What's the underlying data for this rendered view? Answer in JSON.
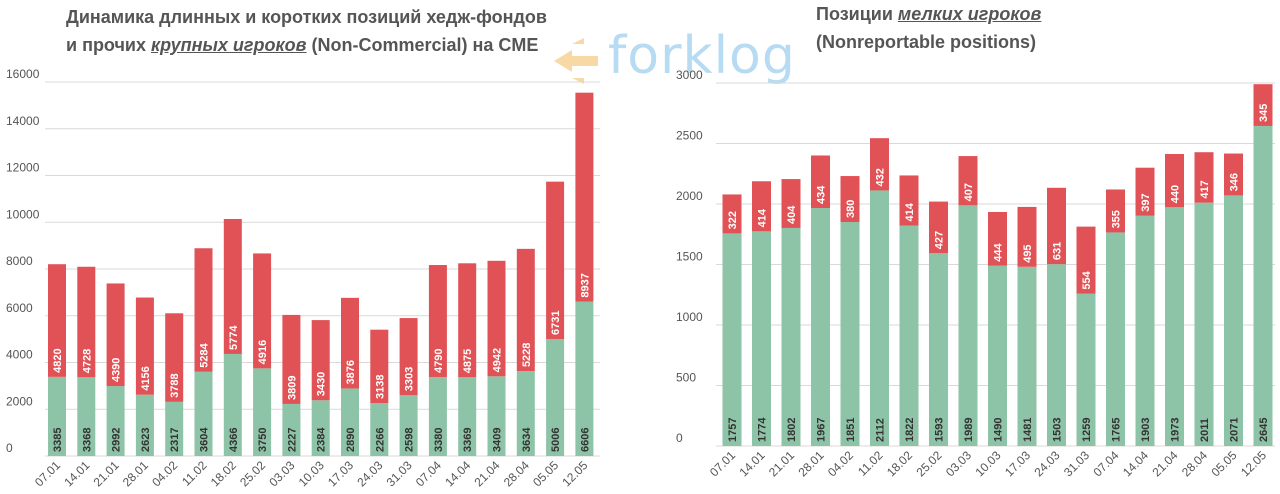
{
  "left_title": {
    "line1": "Динамика длинных и коротких позиций хедж-фондов",
    "line2_pre": "и прочих ",
    "line2_em": "крупных игроков",
    "line2_post": " (Non-Commercial) на CME"
  },
  "right_title": {
    "line1_pre": "Позиции ",
    "line1_em": "мелких игроков",
    "line2": "(Nonreportable positions)"
  },
  "logo": {
    "text": "forklog"
  },
  "colors": {
    "long": "#8dc3a6",
    "short": "#e05256",
    "grid": "#d9d9d9"
  },
  "chart_data": [
    {
      "type": "bar",
      "stacked": true,
      "categories": [
        "07.01",
        "14.01",
        "21.01",
        "28.01",
        "04.02",
        "11.02",
        "18.02",
        "25.02",
        "03.03",
        "10.03",
        "17.03",
        "24.03",
        "31.03",
        "07.04",
        "14.04",
        "21.04",
        "28.04",
        "05.05",
        "12.05"
      ],
      "series": [
        {
          "color": "#8dc3a6",
          "values": [
            3385,
            3368,
            2992,
            2623,
            2317,
            3604,
            4366,
            3750,
            2227,
            2384,
            2890,
            2266,
            2598,
            3380,
            3369,
            3409,
            3634,
            5006,
            6606
          ]
        },
        {
          "color": "#e05256",
          "values": [
            4820,
            4728,
            4390,
            4156,
            3788,
            5284,
            5774,
            4916,
            3809,
            3430,
            3876,
            3138,
            3303,
            4790,
            4875,
            4942,
            5228,
            6731,
            8937
          ]
        }
      ],
      "yticks": [
        0,
        2000,
        4000,
        6000,
        8000,
        10000,
        12000,
        14000,
        16000
      ],
      "ylim": [
        0,
        16000
      ],
      "grid": true
    },
    {
      "type": "bar",
      "stacked": true,
      "categories": [
        "07.01",
        "14.01",
        "21.01",
        "28.01",
        "04.02",
        "11.02",
        "18.02",
        "25.02",
        "03.03",
        "10.03",
        "17.03",
        "24.03",
        "31.03",
        "07.04",
        "14.04",
        "21.04",
        "28.04",
        "05.05",
        "12.05"
      ],
      "series": [
        {
          "color": "#8dc3a6",
          "values": [
            1757,
            1774,
            1802,
            1967,
            1851,
            2112,
            1822,
            1593,
            1989,
            1490,
            1481,
            1503,
            1259,
            1765,
            1903,
            1973,
            2011,
            2071,
            2645
          ]
        },
        {
          "color": "#e05256",
          "values": [
            322,
            414,
            404,
            434,
            380,
            432,
            414,
            427,
            407,
            444,
            495,
            631,
            554,
            355,
            397,
            440,
            417,
            346,
            345
          ]
        }
      ],
      "yticks": [
        0,
        500,
        1000,
        1500,
        2000,
        2500,
        3000
      ],
      "ylim": [
        0,
        3000
      ],
      "grid": true
    }
  ]
}
